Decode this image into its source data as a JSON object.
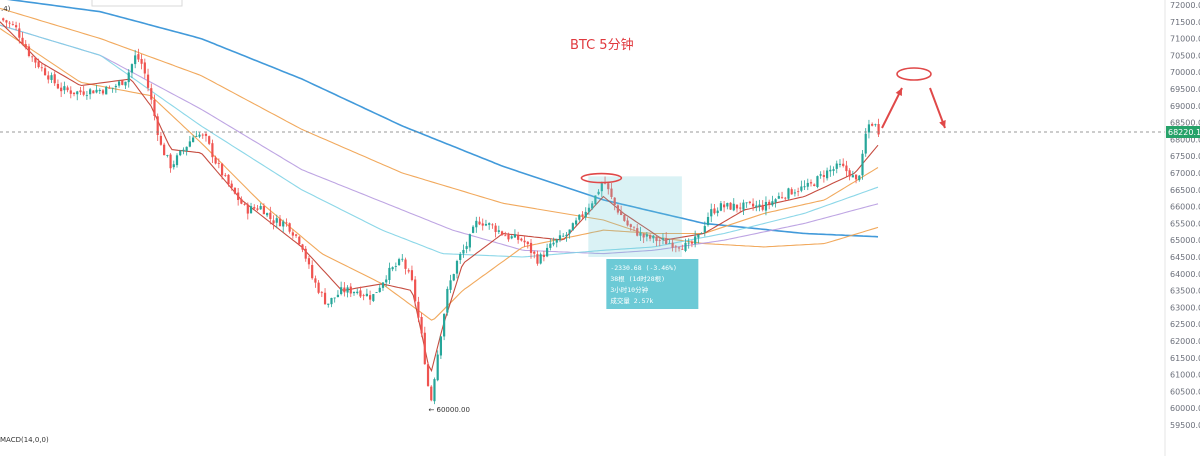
{
  "title": "BTC    5分钟",
  "top_left_label": ".4)",
  "indicator_label": "MACD(14,0,0)",
  "colors": {
    "up": "#26a69a",
    "down": "#ef5350",
    "title": "#e0393e",
    "ma_blue": "#2e8fd6",
    "ma_orange": "#f0a04b",
    "ma_purple": "#b79be0",
    "ma_cyan": "#7fd3e6",
    "ma_red": "#c0392b",
    "measure_box": "#6ccad6",
    "current_price": "#26a269",
    "arrow": "#e04848"
  },
  "current_price_label": "68220.12",
  "low_marker_label": "60000.00",
  "measure_box": {
    "lines": [
      "-2330.68 (-3.46%)",
      "38根 (1d时28根)",
      "3小时10分钟",
      "成交量 2.57k"
    ]
  },
  "chart_data": {
    "type": "candlestick",
    "title": "BTC    5分钟",
    "ylim": [
      59500,
      72000
    ],
    "y_ticks": [
      72000,
      71500,
      71000,
      70500,
      70000,
      69500,
      69000,
      68500,
      68000,
      67500,
      67000,
      66500,
      66000,
      65500,
      65000,
      64500,
      64000,
      63500,
      63000,
      62500,
      62000,
      61500,
      61000,
      60500,
      60000,
      59500
    ],
    "y_tick_labels": [
      "72000.00",
      "71500.00",
      "71000.00",
      "70500.00",
      "70000.00",
      "69500.00",
      "69000.00",
      "68500.00",
      "68000.00",
      "67500.00",
      "67000.00",
      "66500.00",
      "66000.00",
      "65500.00",
      "65000.00",
      "64500.00",
      "64000.00",
      "63500.00",
      "63000.00",
      "62500.00",
      "62000.00",
      "61500.00",
      "61000.00",
      "60500.00",
      "60000.00",
      "59500.00"
    ],
    "current_price": 68220.12,
    "low_price": 60000.0,
    "close_path": [
      [
        0,
        71600
      ],
      [
        15,
        71350
      ],
      [
        30,
        70500
      ],
      [
        45,
        70000
      ],
      [
        60,
        69500
      ],
      [
        75,
        69400
      ],
      [
        90,
        69450
      ],
      [
        110,
        69500
      ],
      [
        125,
        69800
      ],
      [
        135,
        70500
      ],
      [
        142,
        70200
      ],
      [
        150,
        69200
      ],
      [
        160,
        67800
      ],
      [
        170,
        67200
      ],
      [
        180,
        67600
      ],
      [
        195,
        68200
      ],
      [
        205,
        68000
      ],
      [
        215,
        67300
      ],
      [
        230,
        66500
      ],
      [
        245,
        65900
      ],
      [
        260,
        66000
      ],
      [
        270,
        65600
      ],
      [
        285,
        65500
      ],
      [
        300,
        64900
      ],
      [
        310,
        63900
      ],
      [
        325,
        63100
      ],
      [
        340,
        63500
      ],
      [
        355,
        63500
      ],
      [
        370,
        63300
      ],
      [
        385,
        64000
      ],
      [
        400,
        64400
      ],
      [
        410,
        63700
      ],
      [
        420,
        62000
      ],
      [
        428,
        60100
      ],
      [
        435,
        61600
      ],
      [
        445,
        63500
      ],
      [
        455,
        64400
      ],
      [
        465,
        64900
      ],
      [
        475,
        65600
      ],
      [
        490,
        65400
      ],
      [
        505,
        65100
      ],
      [
        520,
        65000
      ],
      [
        535,
        64400
      ],
      [
        550,
        64900
      ],
      [
        565,
        65200
      ],
      [
        580,
        65800
      ],
      [
        592,
        66300
      ],
      [
        600,
        66800
      ],
      [
        610,
        66100
      ],
      [
        625,
        65400
      ],
      [
        640,
        65100
      ],
      [
        655,
        65000
      ],
      [
        670,
        64900
      ],
      [
        685,
        64800
      ],
      [
        695,
        65100
      ],
      [
        705,
        65800
      ],
      [
        715,
        66000
      ],
      [
        730,
        66000
      ],
      [
        745,
        66000
      ],
      [
        760,
        66000
      ],
      [
        775,
        66300
      ],
      [
        790,
        66500
      ],
      [
        805,
        66600
      ],
      [
        820,
        67000
      ],
      [
        835,
        67200
      ],
      [
        845,
        67000
      ],
      [
        852,
        66700
      ],
      [
        858,
        67500
      ],
      [
        862,
        68400
      ],
      [
        868,
        68500
      ],
      [
        875,
        68200
      ]
    ],
    "moving_averages": [
      {
        "color_key": "ma_blue",
        "points": [
          [
            0,
            72200
          ],
          [
            100,
            71800
          ],
          [
            200,
            71000
          ],
          [
            300,
            69800
          ],
          [
            400,
            68400
          ],
          [
            500,
            67200
          ],
          [
            600,
            66200
          ],
          [
            700,
            65500
          ],
          [
            800,
            65200
          ],
          [
            875,
            65100
          ]
        ]
      },
      {
        "color_key": "ma_orange",
        "points": [
          [
            0,
            71900
          ],
          [
            100,
            71000
          ],
          [
            200,
            69900
          ],
          [
            300,
            68300
          ],
          [
            400,
            67000
          ],
          [
            500,
            66100
          ],
          [
            560,
            65800
          ],
          [
            600,
            65600
          ],
          [
            650,
            65100
          ],
          [
            700,
            64900
          ],
          [
            760,
            64800
          ],
          [
            820,
            64900
          ],
          [
            875,
            65400
          ]
        ]
      },
      {
        "color_key": "ma_purple",
        "points": [
          [
            0,
            71400
          ],
          [
            100,
            70500
          ],
          [
            200,
            68900
          ],
          [
            300,
            67100
          ],
          [
            400,
            65900
          ],
          [
            450,
            65300
          ],
          [
            520,
            64700
          ],
          [
            600,
            64600
          ],
          [
            650,
            64700
          ],
          [
            720,
            65000
          ],
          [
            800,
            65500
          ],
          [
            875,
            66100
          ]
        ]
      },
      {
        "color_key": "ma_cyan",
        "points": [
          [
            0,
            71400
          ],
          [
            100,
            70500
          ],
          [
            200,
            68400
          ],
          [
            300,
            66500
          ],
          [
            380,
            65300
          ],
          [
            440,
            64600
          ],
          [
            520,
            64500
          ],
          [
            600,
            64700
          ],
          [
            650,
            64800
          ],
          [
            720,
            65200
          ],
          [
            800,
            65800
          ],
          [
            875,
            66600
          ]
        ]
      },
      {
        "color_key": "ma_orange",
        "points": [
          [
            0,
            71300
          ],
          [
            80,
            69700
          ],
          [
            150,
            69300
          ],
          [
            200,
            67900
          ],
          [
            260,
            66100
          ],
          [
            320,
            64600
          ],
          [
            380,
            63700
          ],
          [
            430,
            62600
          ],
          [
            460,
            63500
          ],
          [
            520,
            64800
          ],
          [
            600,
            65300
          ],
          [
            650,
            65200
          ],
          [
            700,
            65200
          ],
          [
            760,
            65800
          ],
          [
            820,
            66200
          ],
          [
            875,
            67200
          ]
        ]
      },
      {
        "color_key": "ma_red",
        "points": [
          [
            0,
            71500
          ],
          [
            40,
            70300
          ],
          [
            80,
            69600
          ],
          [
            130,
            69800
          ],
          [
            150,
            69000
          ],
          [
            170,
            67700
          ],
          [
            200,
            67600
          ],
          [
            240,
            66200
          ],
          [
            300,
            64800
          ],
          [
            340,
            63500
          ],
          [
            380,
            63700
          ],
          [
            410,
            63500
          ],
          [
            428,
            61000
          ],
          [
            440,
            62400
          ],
          [
            460,
            64300
          ],
          [
            500,
            65200
          ],
          [
            560,
            65000
          ],
          [
            600,
            66300
          ],
          [
            620,
            65800
          ],
          [
            660,
            65000
          ],
          [
            700,
            65200
          ],
          [
            740,
            65900
          ],
          [
            800,
            66300
          ],
          [
            850,
            67000
          ],
          [
            875,
            67900
          ]
        ]
      }
    ]
  }
}
